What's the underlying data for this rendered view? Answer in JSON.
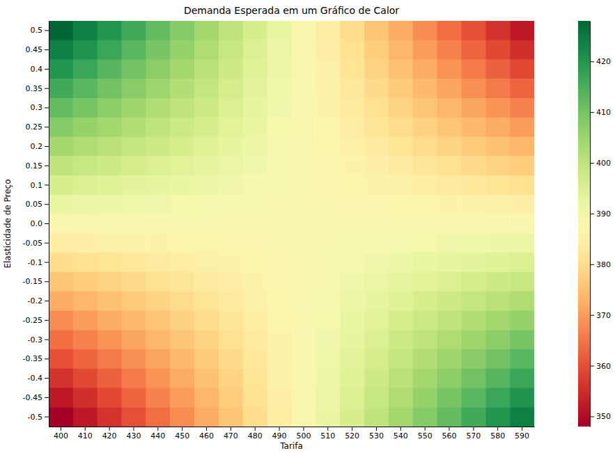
{
  "chart_data": {
    "type": "heatmap",
    "title": "Demanda Esperada em um Gráfico de Calor",
    "x_label": "Tarifa",
    "y_label": "Elasticidade de Preço",
    "x": [
      "400",
      "410",
      "420",
      "430",
      "440",
      "450",
      "460",
      "470",
      "480",
      "490",
      "500",
      "510",
      "520",
      "530",
      "540",
      "550",
      "560",
      "570",
      "580",
      "590"
    ],
    "y": [
      "0.5",
      "0.45",
      "0.4",
      "0.35",
      "0.3",
      "0.25",
      "0.2",
      "0.15",
      "0.1",
      "0.05",
      "0.0",
      "-0.05",
      "-0.1",
      "-0.15",
      "-0.2",
      "-0.25",
      "-0.3",
      "-0.35",
      "-0.4",
      "-0.45",
      "-0.5"
    ],
    "values": [
      [
        428,
        424,
        420,
        416,
        412,
        408,
        404,
        400,
        396,
        392,
        388,
        384,
        380,
        376,
        372,
        368,
        364,
        360,
        356,
        352
      ],
      [
        424,
        420.4,
        416.8,
        413.2,
        409.6,
        406,
        402.4,
        398.8,
        395.2,
        391.6,
        388,
        384.4,
        380.8,
        377.2,
        373.6,
        370,
        366.4,
        362.8,
        359.2,
        355.6
      ],
      [
        420,
        416.8,
        413.6,
        410.4,
        407.2,
        404,
        400.8,
        397.6,
        394.4,
        391.2,
        388,
        384.8,
        381.6,
        378.4,
        375.2,
        372,
        368.8,
        365.6,
        362.4,
        359.2
      ],
      [
        416,
        413.2,
        410.4,
        407.6,
        404.8,
        402,
        399.2,
        396.4,
        393.6,
        390.8,
        388,
        385.2,
        382.4,
        379.6,
        376.8,
        374,
        371.2,
        368.4,
        365.6,
        362.8
      ],
      [
        412,
        409.6,
        407.2,
        404.8,
        402.4,
        400,
        397.6,
        395.2,
        392.8,
        390.4,
        388,
        385.6,
        383.2,
        380.8,
        378.4,
        376,
        373.6,
        371.2,
        368.8,
        366.4
      ],
      [
        408,
        406,
        404,
        402,
        400,
        398,
        396,
        394,
        392,
        390,
        388,
        386,
        384,
        382,
        380,
        378,
        376,
        374,
        372,
        370
      ],
      [
        404,
        402.4,
        400.8,
        399.2,
        397.6,
        396,
        394.4,
        392.8,
        391.2,
        389.6,
        388,
        386.4,
        384.8,
        383.2,
        381.6,
        380,
        378.4,
        376.8,
        375.2,
        373.6
      ],
      [
        400,
        398.8,
        397.6,
        396.4,
        395.2,
        394,
        392.8,
        391.6,
        390.4,
        389.2,
        388,
        386.8,
        385.6,
        384.4,
        383.2,
        382,
        380.8,
        379.6,
        378.4,
        377.2
      ],
      [
        396,
        395.2,
        394.4,
        393.6,
        392.8,
        392,
        391.2,
        390.4,
        389.6,
        388.8,
        388,
        387.2,
        386.4,
        385.6,
        384.8,
        384,
        383.2,
        382.4,
        381.6,
        380.8
      ],
      [
        392,
        391.6,
        391.2,
        390.8,
        390.4,
        390,
        389.6,
        389.2,
        388.8,
        388.4,
        388,
        387.6,
        387.2,
        386.8,
        386.4,
        386,
        385.6,
        385.2,
        384.8,
        384.4
      ],
      [
        388,
        388,
        388,
        388,
        388,
        388,
        388,
        388,
        388,
        388,
        388,
        388,
        388,
        388,
        388,
        388,
        388,
        388,
        388,
        388
      ],
      [
        384,
        384.4,
        384.8,
        385.2,
        385.6,
        386,
        386.4,
        386.8,
        387.2,
        387.6,
        388,
        388.4,
        388.8,
        389.2,
        389.6,
        390,
        390.4,
        390.8,
        391.2,
        391.6
      ],
      [
        380,
        380.8,
        381.6,
        382.4,
        383.2,
        384,
        384.8,
        385.6,
        386.4,
        387.2,
        388,
        388.8,
        389.6,
        390.4,
        391.2,
        392,
        392.8,
        393.6,
        394.4,
        395.2
      ],
      [
        376,
        377.2,
        378.4,
        379.6,
        380.8,
        382,
        383.2,
        384.4,
        385.6,
        386.8,
        388,
        389.2,
        390.4,
        391.6,
        392.8,
        394,
        395.2,
        396.4,
        397.6,
        398.8
      ],
      [
        372,
        373.6,
        375.2,
        376.8,
        378.4,
        380,
        381.6,
        383.2,
        384.8,
        386.4,
        388,
        389.6,
        391.2,
        392.8,
        394.4,
        396,
        397.6,
        399.2,
        400.8,
        402.4
      ],
      [
        368,
        370,
        372,
        374,
        376,
        378,
        380,
        382,
        384,
        386,
        388,
        390,
        392,
        394,
        396,
        398,
        400,
        402,
        404,
        406
      ],
      [
        364,
        366.4,
        368.8,
        371.2,
        373.6,
        376,
        378.4,
        380.8,
        383.2,
        385.6,
        388,
        390.4,
        392.8,
        395.2,
        397.6,
        400,
        402.4,
        404.8,
        407.2,
        409.6
      ],
      [
        360,
        362.8,
        365.6,
        368.4,
        371.2,
        374,
        376.8,
        379.6,
        382.4,
        385.2,
        388,
        390.8,
        393.6,
        396.4,
        399.2,
        402,
        404.8,
        407.6,
        410.4,
        413.2
      ],
      [
        356,
        359.2,
        362.4,
        365.6,
        368.8,
        372,
        375.2,
        378.4,
        381.6,
        384.8,
        388,
        391.2,
        394.4,
        397.6,
        400.8,
        404,
        407.2,
        410.4,
        413.6,
        416.8
      ],
      [
        352,
        355.6,
        359.2,
        362.8,
        366.4,
        370,
        373.6,
        377.2,
        380.8,
        384.4,
        388,
        391.6,
        395.2,
        398.8,
        402.4,
        406,
        409.6,
        413.2,
        416.8,
        420.4
      ],
      [
        348,
        352,
        356,
        360,
        364,
        368,
        372,
        376,
        380,
        384,
        388,
        392,
        396,
        400,
        404,
        408,
        412,
        416,
        420,
        424
      ]
    ],
    "colorbar": {
      "range": [
        348,
        428
      ],
      "ticks": [
        350,
        360,
        370,
        380,
        390,
        400,
        410,
        420
      ]
    }
  }
}
